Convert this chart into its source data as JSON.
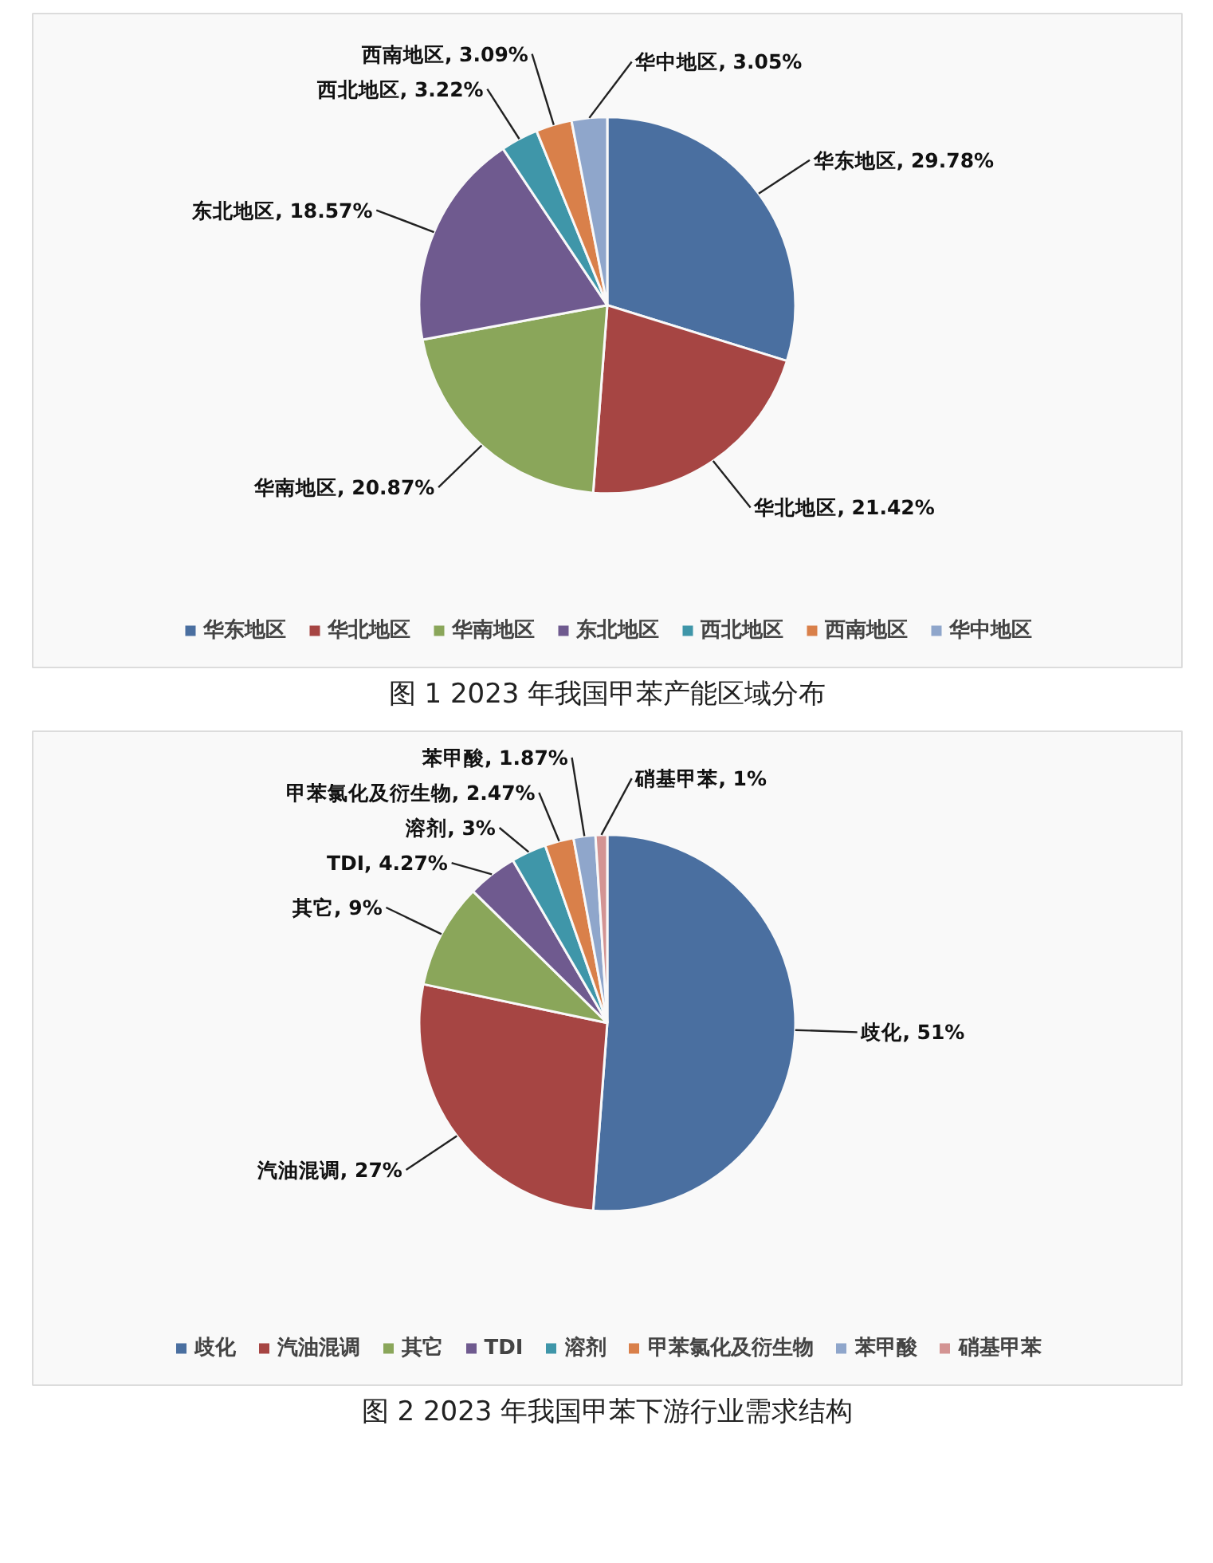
{
  "chart_data": [
    {
      "type": "pie",
      "categories": [
        "华东地区",
        "华北地区",
        "华南地区",
        "东北地区",
        "西北地区",
        "西南地区",
        "华中地区"
      ],
      "values": [
        29.78,
        21.42,
        20.87,
        18.57,
        3.22,
        3.09,
        3.05
      ],
      "colors": [
        "#4a6fa0",
        "#a64543",
        "#8aa65a",
        "#6f5a8f",
        "#3f96a9",
        "#d9804a",
        "#8fa6cb"
      ],
      "value_labels": [
        "华东地区, 29.78%",
        "华北地区, 21.42%",
        "华南地区, 20.87%",
        "东北地区, 18.57%",
        "西北地区, 3.22%",
        "西南地区, 3.09%",
        "华中地区, 3.05%"
      ],
      "legend": "bottom",
      "annotations": [
        "图 1 2023 年我国甲苯产能区域分布"
      ]
    },
    {
      "type": "pie",
      "categories": [
        "歧化",
        "汽油混调",
        "其它",
        "TDI",
        "溶剂",
        "甲苯氯化及衍生物",
        "苯甲酸",
        "硝基甲苯"
      ],
      "values": [
        51,
        27,
        9,
        4.27,
        3,
        2.47,
        1.87,
        1
      ],
      "colors": [
        "#4a6fa0",
        "#a64543",
        "#8aa65a",
        "#6f5a8f",
        "#3f96a9",
        "#d9804a",
        "#8fa6cb",
        "#d39493"
      ],
      "value_labels": [
        "歧化, 51%",
        "汽油混调, 27%",
        "其它, 9%",
        "TDI, 4.27%",
        "溶剂, 3%",
        "甲苯氯化及衍生物, 2.47%",
        "苯甲酸, 1.87%",
        "硝基甲苯, 1%"
      ],
      "legend": "bottom",
      "annotations": [
        "图 2 2023 年我国甲苯下游行业需求结构"
      ]
    }
  ]
}
